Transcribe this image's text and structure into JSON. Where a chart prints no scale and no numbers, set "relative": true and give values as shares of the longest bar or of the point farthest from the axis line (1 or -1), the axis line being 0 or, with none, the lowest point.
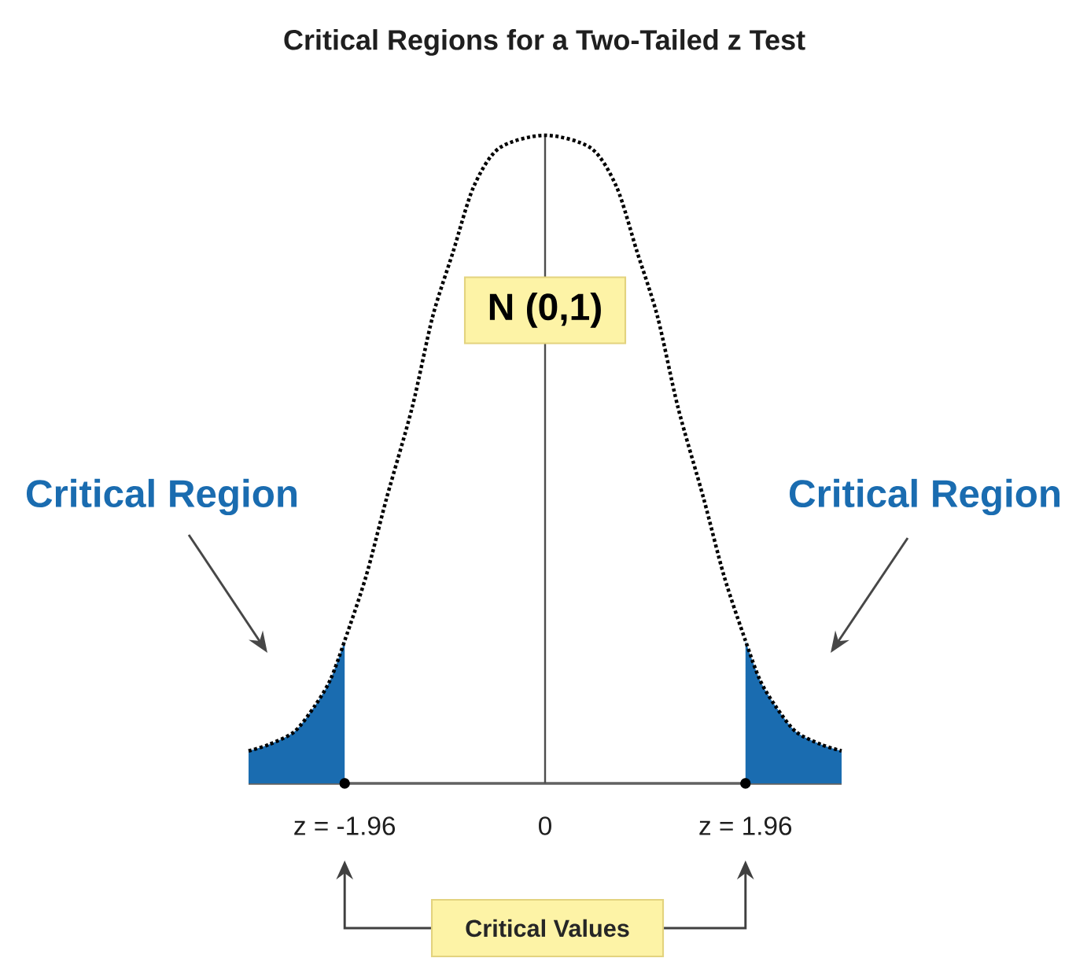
{
  "chart_data": {
    "type": "line",
    "title": "Critical Regions for a Two-Tailed z Test",
    "relative": true,
    "xlim": [
      -2.9,
      2.9
    ],
    "xticks": [
      {
        "value": -1.96,
        "label": "z = -1.96"
      },
      0,
      {
        "value": 1.96,
        "label": "z = 1.96"
      }
    ],
    "line_style": "dotted",
    "series": [
      {
        "color": "#000000",
        "x": [
          -2.9,
          -2.7,
          -2.45,
          -2.25,
          -2.1,
          -1.96,
          -1.75,
          -1.55,
          -1.3,
          -1.1,
          -0.9,
          -0.7,
          -0.45,
          0,
          0.45,
          0.7,
          0.9,
          1.1,
          1.3,
          1.55,
          1.75,
          1.96,
          2.1,
          2.25,
          2.45,
          2.7,
          2.9
        ],
        "values": [
          0.05,
          0.06,
          0.08,
          0.12,
          0.16,
          0.22,
          0.32,
          0.44,
          0.58,
          0.72,
          0.82,
          0.92,
          0.98,
          1,
          0.98,
          0.92,
          0.82,
          0.72,
          0.58,
          0.44,
          0.32,
          0.22,
          0.16,
          0.12,
          0.08,
          0.06,
          0.05
        ]
      },
      {
        "type": "area",
        "color": "#1a6cb0",
        "x": [
          -2.9,
          -2.7,
          -2.45,
          -2.25,
          -2.1,
          -1.96
        ],
        "values": [
          0.05,
          0.06,
          0.08,
          0.12,
          0.16,
          0.22
        ]
      },
      {
        "type": "area",
        "color": "#1a6cb0",
        "x": [
          1.96,
          2.1,
          2.25,
          2.45,
          2.7,
          2.9
        ],
        "values": [
          0.22,
          0.16,
          0.12,
          0.08,
          0.06,
          0.05
        ]
      },
      {
        "type": "scatter",
        "color": "#000000",
        "marker": "circle",
        "x": [
          -1.96,
          1.96
        ],
        "values": [
          0,
          0
        ]
      }
    ],
    "ref_lines": [
      {
        "axis": "x",
        "value": 0,
        "color": "#4d4d4d"
      }
    ],
    "annotations": [
      "N (0,1)",
      "Critical Region",
      "Critical Region",
      "Critical Values"
    ]
  }
}
